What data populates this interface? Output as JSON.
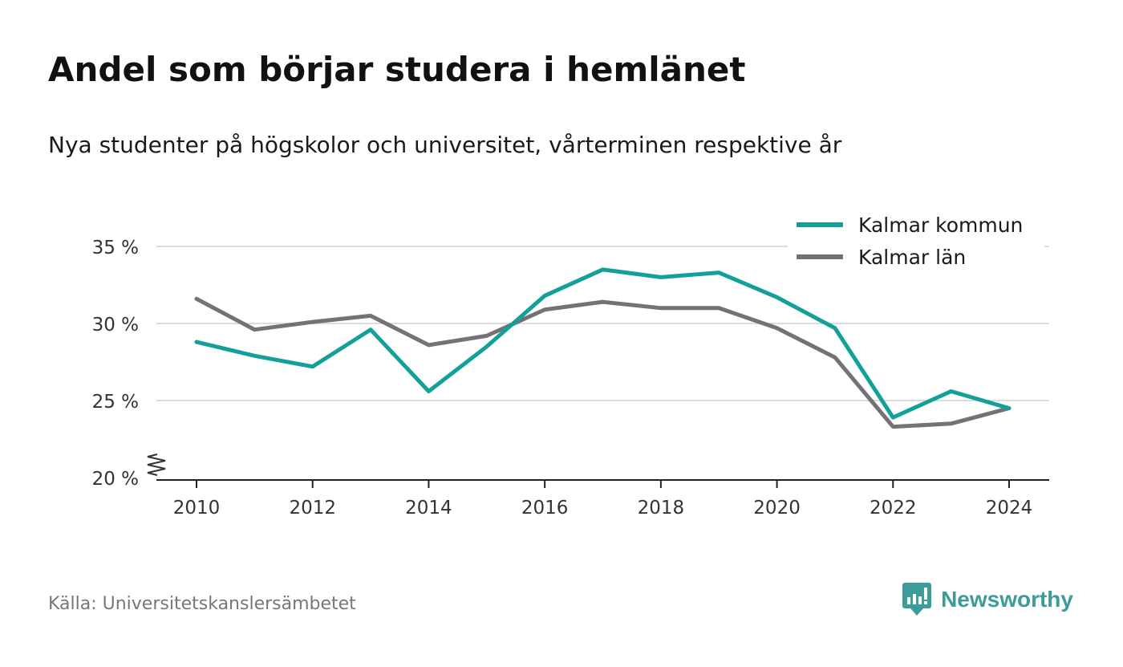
{
  "title": "Andel som börjar studera i hemlänet",
  "subtitle": "Nya studenter på högskolor och universitet, vårterminen respektive år",
  "source": "Källa: Universitetskanslersämbetet",
  "brand": {
    "name": "Newsworthy",
    "icon": "newsworthy-logo-icon",
    "color": "#3b9c99"
  },
  "chart_data": {
    "type": "line",
    "x": [
      2010,
      2011,
      2012,
      2013,
      2014,
      2015,
      2016,
      2017,
      2018,
      2019,
      2020,
      2021,
      2022,
      2023,
      2024
    ],
    "series": [
      {
        "name": "Kalmar kommun",
        "color": "#14a09a",
        "values": [
          28.8,
          27.9,
          27.2,
          29.6,
          25.6,
          28.5,
          31.8,
          33.5,
          33.0,
          33.3,
          31.7,
          29.7,
          23.9,
          25.6,
          24.5
        ]
      },
      {
        "name": "Kalmar län",
        "color": "#747277",
        "values": [
          31.6,
          29.6,
          30.1,
          30.5,
          28.6,
          29.2,
          30.9,
          31.4,
          31.0,
          31.0,
          29.7,
          27.8,
          23.3,
          23.5,
          24.5
        ]
      }
    ],
    "xticks": [
      "2010",
      "2012",
      "2014",
      "2016",
      "2018",
      "2020",
      "2022",
      "2024"
    ],
    "yticks": [
      "20 %",
      "25 %",
      "30 %",
      "35 %"
    ],
    "ylim": [
      20,
      35
    ],
    "legend": "top-right",
    "grid": true,
    "y_axis_break": true
  }
}
